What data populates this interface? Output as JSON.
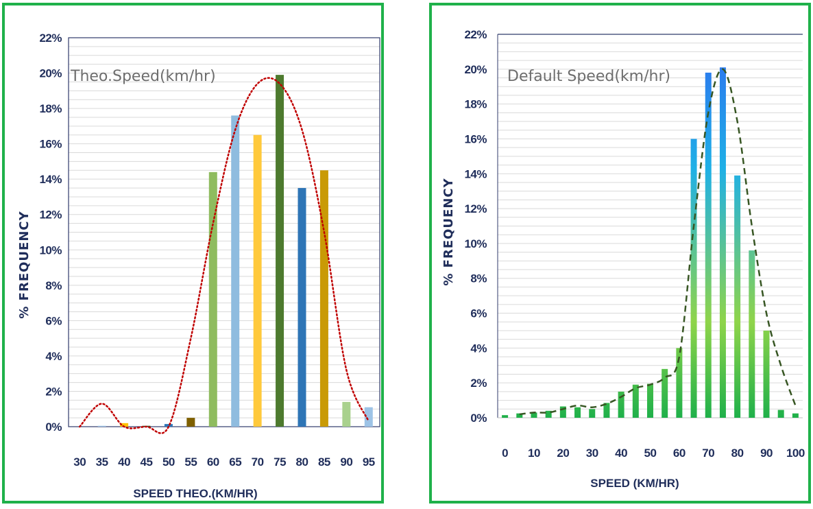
{
  "chart_data": [
    {
      "type": "bar",
      "title": "Theo.Speed(km/hr)",
      "xlabel": "SPEED THEO.(KM/HR)",
      "ylabel": "% FREQUENCY",
      "ylim": [
        0,
        22
      ],
      "yticks": [
        "0%",
        "2%",
        "4%",
        "6%",
        "8%",
        "10%",
        "12%",
        "14%",
        "16%",
        "18%",
        "20%",
        "22%"
      ],
      "categories": [
        "30",
        "35",
        "40",
        "45",
        "50",
        "55",
        "60",
        "65",
        "70",
        "75",
        "80",
        "85",
        "90",
        "95"
      ],
      "values": [
        0.0,
        0.05,
        0.2,
        0.05,
        0.15,
        0.5,
        14.4,
        17.6,
        16.5,
        19.9,
        13.5,
        14.5,
        1.4,
        1.1
      ],
      "bar_colors": [
        "#9ec3e6",
        "#9ec3e6",
        "#ffc000",
        "#375623",
        "#2e75b6",
        "#7f6000",
        "#8fbc5f",
        "#8fbcdf",
        "#ffc93c",
        "#4d7a2e",
        "#2e75b6",
        "#c99a06",
        "#a9d18e",
        "#9dc3e6"
      ],
      "trend": {
        "style": "dotted",
        "color": "#c00000",
        "x": [
          30,
          35,
          40,
          45,
          50,
          55,
          60,
          65,
          70,
          75,
          80,
          85,
          90,
          95
        ],
        "y": [
          0.0,
          1.3,
          0.0,
          0.0,
          0.0,
          5.0,
          11.5,
          16.8,
          19.4,
          19.4,
          16.8,
          11.0,
          3.2,
          0.3
        ]
      },
      "grid": true
    },
    {
      "type": "bar",
      "title": "Default Speed(km/hr)",
      "xlabel": "SPEED (KM/HR)",
      "ylabel": "% FREQUENCY",
      "ylim": [
        0,
        22
      ],
      "yticks": [
        "0%",
        "2%",
        "4%",
        "6%",
        "8%",
        "10%",
        "12%",
        "14%",
        "16%",
        "18%",
        "20%",
        "22%"
      ],
      "xticks": [
        "0",
        "10",
        "20",
        "30",
        "40",
        "50",
        "60",
        "70",
        "80",
        "90",
        "100"
      ],
      "x": [
        0,
        5,
        10,
        15,
        20,
        25,
        30,
        35,
        40,
        45,
        50,
        55,
        60,
        65,
        70,
        75,
        80,
        85,
        90,
        95,
        100
      ],
      "values": [
        0.15,
        0.25,
        0.3,
        0.4,
        0.65,
        0.6,
        0.5,
        0.85,
        1.5,
        1.9,
        1.95,
        2.8,
        4.0,
        16.0,
        19.8,
        20.1,
        13.9,
        9.6,
        5.0,
        0.45,
        0.25
      ],
      "bar_gradient": [
        "#2f6bf0",
        "#1fb0e6",
        "#8fd44a",
        "#1fb04a"
      ],
      "trend": {
        "style": "dashed",
        "color": "#375623",
        "x": [
          5,
          10,
          15,
          20,
          25,
          30,
          35,
          40,
          45,
          50,
          55,
          60,
          65,
          70,
          75,
          80,
          85,
          90,
          95,
          100
        ],
        "y": [
          0.2,
          0.3,
          0.3,
          0.5,
          0.7,
          0.6,
          0.8,
          1.2,
          1.7,
          1.9,
          2.3,
          3.5,
          11.0,
          17.5,
          20.0,
          17.0,
          11.0,
          6.0,
          3.0,
          0.7
        ]
      },
      "grid": true
    }
  ]
}
